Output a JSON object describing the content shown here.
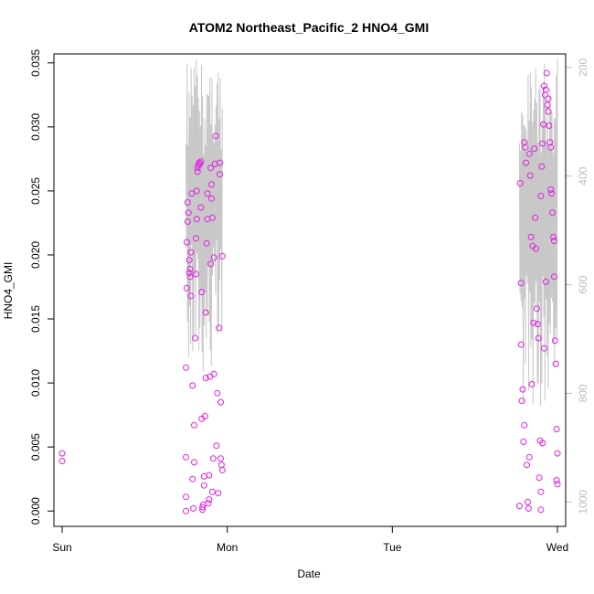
{
  "chart_data": {
    "type": "scatter",
    "title": "ATOM2 Northeast_Pacific_2 HNO4_GMI",
    "xlabel": "Date",
    "ylabel": "HNO4_GMI",
    "x_ticks": [
      "Sun",
      "Mon",
      "Tue",
      "Wed"
    ],
    "x_range_days": [
      -0.05,
      3.05
    ],
    "ylim": [
      -0.0012,
      0.0357
    ],
    "y_ticks": [
      "0.000",
      "0.005",
      "0.010",
      "0.015",
      "0.020",
      "0.025",
      "0.030",
      "0.035"
    ],
    "y_tick_values": [
      0,
      0.005,
      0.01,
      0.015,
      0.02,
      0.025,
      0.03,
      0.035
    ],
    "y2_ticks": [
      "200",
      "400",
      "600",
      "800",
      "1000"
    ],
    "y2_tick_values": [
      200,
      400,
      600,
      800,
      1000
    ],
    "y2lim": [
      1045,
      175
    ],
    "point_color": "#e020e0",
    "pressure_color": "#c8c8c8",
    "series": [
      {
        "values": [
          [
            0.0,
            0.0045
          ],
          [
            0.0,
            0.0039
          ],
          [
            0.75,
            0.0112
          ],
          [
            0.75,
            0.0042
          ],
          [
            0.75,
            0.0011
          ],
          [
            0.75,
            0.0
          ],
          [
            0.755,
            0.0174
          ],
          [
            0.755,
            0.021
          ],
          [
            0.76,
            0.0226
          ],
          [
            0.76,
            0.0241
          ],
          [
            0.765,
            0.0233
          ],
          [
            0.77,
            0.0196
          ],
          [
            0.77,
            0.0186
          ],
          [
            0.775,
            0.0189
          ],
          [
            0.775,
            0.0183
          ],
          [
            0.78,
            0.0168
          ],
          [
            0.78,
            0.0202
          ],
          [
            0.785,
            0.0248
          ],
          [
            0.79,
            0.0098
          ],
          [
            0.79,
            0.0025
          ],
          [
            0.795,
            0.0002
          ],
          [
            0.8,
            0.0038
          ],
          [
            0.8,
            0.0067
          ],
          [
            0.805,
            0.0135
          ],
          [
            0.81,
            0.0213
          ],
          [
            0.81,
            0.0185
          ],
          [
            0.815,
            0.0228
          ],
          [
            0.815,
            0.025
          ],
          [
            0.82,
            0.0265
          ],
          [
            0.82,
            0.0268
          ],
          [
            0.825,
            0.027
          ],
          [
            0.83,
            0.0272
          ],
          [
            0.835,
            0.0271
          ],
          [
            0.84,
            0.0273
          ],
          [
            0.84,
            0.0237
          ],
          [
            0.845,
            0.0171
          ],
          [
            0.845,
            0.0072
          ],
          [
            0.85,
            0.0001
          ],
          [
            0.85,
            0.0003
          ],
          [
            0.855,
            0.0005
          ],
          [
            0.86,
            0.002
          ],
          [
            0.86,
            0.0027
          ],
          [
            0.865,
            0.0074
          ],
          [
            0.87,
            0.0104
          ],
          [
            0.87,
            0.0155
          ],
          [
            0.875,
            0.0209
          ],
          [
            0.88,
            0.0228
          ],
          [
            0.88,
            0.0248
          ],
          [
            0.885,
            0.0006
          ],
          [
            0.89,
            0.0009
          ],
          [
            0.89,
            0.0028
          ],
          [
            0.895,
            0.0105
          ],
          [
            0.9,
            0.0193
          ],
          [
            0.9,
            0.0268
          ],
          [
            0.905,
            0.0255
          ],
          [
            0.905,
            0.0244
          ],
          [
            0.91,
            0.0229
          ],
          [
            0.91,
            0.0015
          ],
          [
            0.915,
            0.0041
          ],
          [
            0.92,
            0.0107
          ],
          [
            0.92,
            0.0198
          ],
          [
            0.925,
            0.0271
          ],
          [
            0.93,
            0.0293
          ],
          [
            0.935,
            0.0051
          ],
          [
            0.94,
            0.0092
          ],
          [
            0.945,
            0.0014
          ],
          [
            0.95,
            0.0143
          ],
          [
            0.955,
            0.0263
          ],
          [
            0.955,
            0.0272
          ],
          [
            0.96,
            0.0085
          ],
          [
            0.96,
            0.0041
          ],
          [
            0.965,
            0.0036
          ],
          [
            0.97,
            0.0032
          ],
          [
            0.97,
            0.0199
          ],
          [
            2.77,
            0.0004
          ],
          [
            2.775,
            0.0256
          ],
          [
            2.78,
            0.0178
          ],
          [
            2.78,
            0.013
          ],
          [
            2.785,
            0.0086
          ],
          [
            2.79,
            0.0095
          ],
          [
            2.795,
            0.0054
          ],
          [
            2.8,
            0.0067
          ],
          [
            2.8,
            0.0288
          ],
          [
            2.805,
            0.0284
          ],
          [
            2.81,
            0.0272
          ],
          [
            2.815,
            0.0036
          ],
          [
            2.82,
            0.0007
          ],
          [
            2.825,
            0.0002
          ],
          [
            2.83,
            0.0042
          ],
          [
            2.83,
            0.0279
          ],
          [
            2.835,
            0.0262
          ],
          [
            2.84,
            0.0214
          ],
          [
            2.845,
            0.0099
          ],
          [
            2.85,
            0.0207
          ],
          [
            2.855,
            0.0147
          ],
          [
            2.86,
            0.0283
          ],
          [
            2.865,
            0.0229
          ],
          [
            2.87,
            0.0205
          ],
          [
            2.875,
            0.0158
          ],
          [
            2.88,
            0.0146
          ],
          [
            2.885,
            0.0135
          ],
          [
            2.89,
            0.0026
          ],
          [
            2.895,
            0.0055
          ],
          [
            2.9,
            0.0015
          ],
          [
            2.9,
            0.0246
          ],
          [
            2.905,
            0.0269
          ],
          [
            2.91,
            0.0287
          ],
          [
            2.915,
            0.0302
          ],
          [
            2.92,
            0.0332
          ],
          [
            2.925,
            0.0325
          ],
          [
            2.93,
            0.0329
          ],
          [
            2.935,
            0.0342
          ],
          [
            2.94,
            0.0317
          ],
          [
            2.945,
            0.0322
          ],
          [
            2.95,
            0.0301
          ],
          [
            2.955,
            0.0288
          ],
          [
            2.96,
            0.0284
          ],
          [
            2.965,
            0.0248
          ],
          [
            2.97,
            0.0233
          ],
          [
            2.975,
            0.0214
          ],
          [
            2.98,
            0.0183
          ],
          [
            2.985,
            0.0133
          ],
          [
            2.99,
            0.0115
          ],
          [
            2.995,
            0.0064
          ],
          [
            3.0,
            0.0045
          ],
          [
            3.0,
            0.0021
          ],
          [
            2.995,
            0.0024
          ],
          [
            2.98,
            0.0211
          ],
          [
            2.96,
            0.0251
          ],
          [
            2.945,
            0.0312
          ],
          [
            2.93,
            0.0179
          ],
          [
            2.92,
            0.0127
          ],
          [
            2.91,
            0.0053
          ],
          [
            2.9,
            0.0001
          ]
        ]
      }
    ]
  }
}
